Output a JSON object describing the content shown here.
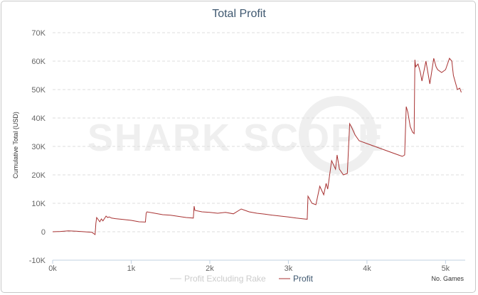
{
  "chart_data": {
    "type": "line",
    "title": "Total Profit",
    "ylabel": "Cumulative Total (USD)",
    "xlabel": "No. Games",
    "ylim": [
      -10000,
      70000
    ],
    "xlim": [
      0,
      5250
    ],
    "y_ticks": [
      "-10K",
      "0",
      "10K",
      "20K",
      "30K",
      "40K",
      "50K",
      "60K",
      "70K"
    ],
    "y_tick_values": [
      -10000,
      0,
      10000,
      20000,
      30000,
      40000,
      50000,
      60000,
      70000
    ],
    "x_ticks": [
      "0k",
      "1k",
      "2k",
      "3k",
      "4k",
      "5k"
    ],
    "x_tick_values": [
      0,
      1000,
      2000,
      3000,
      4000,
      5000
    ],
    "grid": true,
    "legend_position": "bottom-center",
    "watermark": "SHARK SCOPE",
    "colors": {
      "profit": "#a83232",
      "profit_excluding_rake": "#d3d3d3",
      "grid": "#dddddd",
      "title": "#3e576f"
    },
    "series": [
      {
        "name": "Profit Excluding Rake",
        "visible": false,
        "values": []
      },
      {
        "name": "Profit",
        "x": [
          0,
          100,
          200,
          300,
          400,
          500,
          540,
          550,
          560,
          600,
          620,
          640,
          680,
          700,
          720,
          750,
          800,
          900,
          1000,
          1100,
          1180,
          1190,
          1200,
          1300,
          1400,
          1500,
          1600,
          1700,
          1790,
          1800,
          1810,
          1900,
          2000,
          2100,
          2200,
          2300,
          2400,
          2500,
          2600,
          2700,
          2800,
          2900,
          3000,
          3100,
          3200,
          3240,
          3250,
          3260,
          3300,
          3350,
          3400,
          3450,
          3480,
          3500,
          3550,
          3600,
          3620,
          3650,
          3700,
          3750,
          3780,
          3800,
          3850,
          3900,
          4000,
          4100,
          4200,
          4300,
          4400,
          4450,
          4480,
          4500,
          4520,
          4550,
          4580,
          4600,
          4610,
          4620,
          4650,
          4680,
          4700,
          4750,
          4800,
          4850,
          4880,
          4900,
          4950,
          5000,
          5050,
          5080,
          5100,
          5150,
          5180,
          5200
        ],
        "values": [
          0,
          100,
          300,
          200,
          0,
          -200,
          -1000,
          3000,
          5000,
          3500,
          4500,
          3800,
          5500,
          5000,
          5200,
          4800,
          4600,
          4300,
          4000,
          3500,
          3400,
          6500,
          7000,
          6500,
          6000,
          5800,
          5400,
          5000,
          4800,
          9000,
          7500,
          7000,
          6800,
          6500,
          6800,
          6300,
          8000,
          7000,
          6500,
          6200,
          5800,
          5500,
          5200,
          4800,
          4500,
          4400,
          12500,
          12000,
          10000,
          9500,
          16000,
          13000,
          17000,
          15000,
          25000,
          22000,
          27000,
          22000,
          20000,
          20500,
          38000,
          37000,
          34000,
          32000,
          31000,
          30000,
          29000,
          28000,
          27000,
          26500,
          27000,
          44000,
          42000,
          37000,
          35000,
          34500,
          60500,
          58000,
          59000,
          56000,
          53000,
          60000,
          52000,
          61000,
          58000,
          57000,
          56000,
          57000,
          61000,
          60000,
          55000,
          50000,
          50500,
          49000
        ]
      }
    ]
  }
}
